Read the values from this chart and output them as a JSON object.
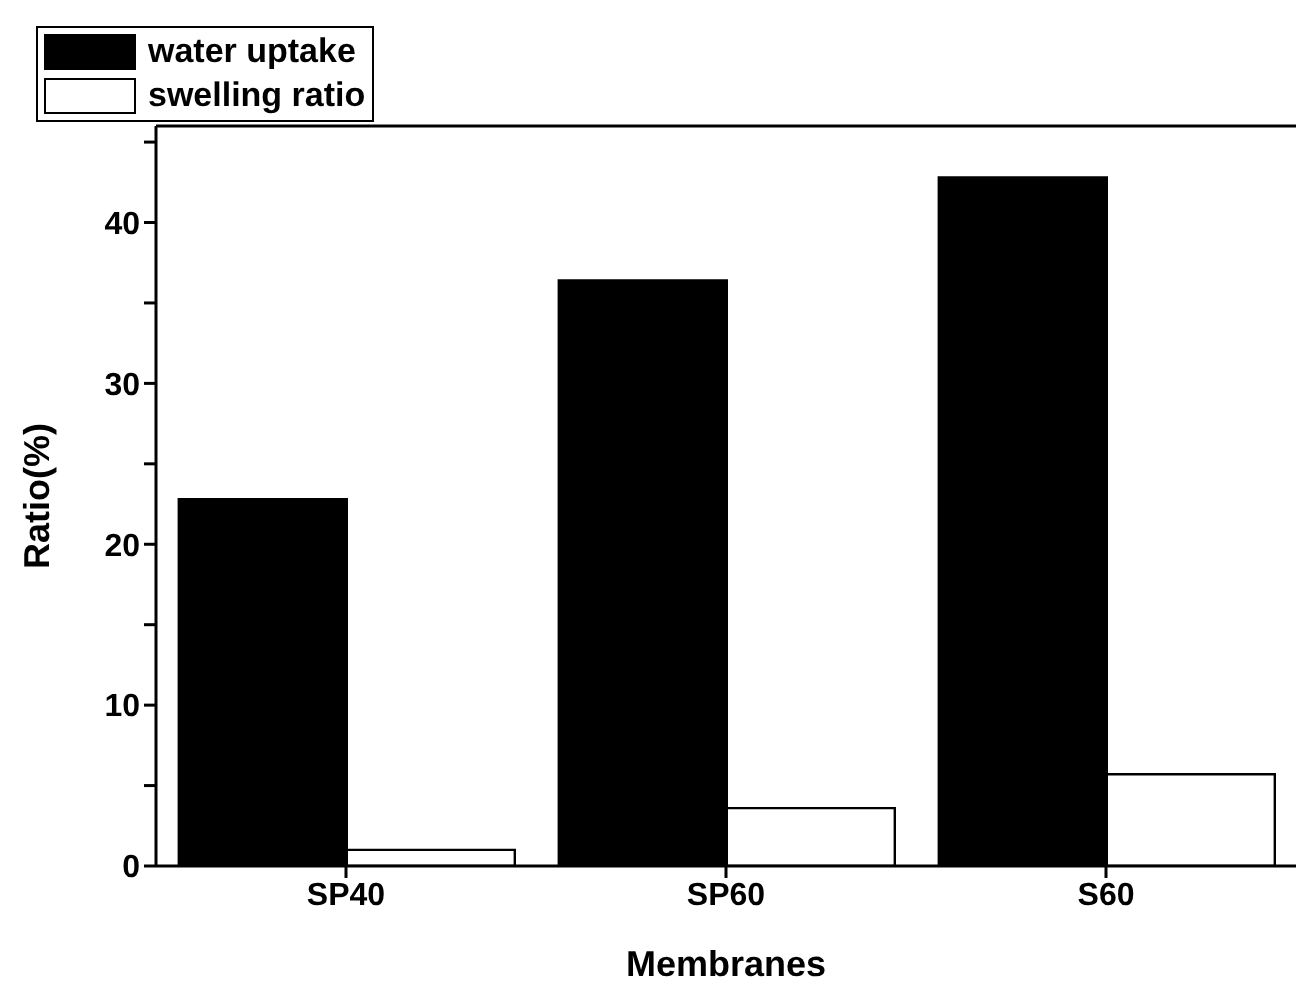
{
  "chart_data": {
    "type": "bar",
    "xlabel": "Membranes",
    "ylabel": "Ratio(%)",
    "categories": [
      "SP40",
      "SP60",
      "S60"
    ],
    "series": [
      {
        "name": "water uptake",
        "color": "#000000",
        "values": [
          22.8,
          36.4,
          42.8
        ]
      },
      {
        "name": "swelling ratio",
        "color": "#ffffff",
        "values": [
          1.0,
          3.6,
          5.7
        ]
      }
    ],
    "ylim": [
      0,
      46
    ],
    "yticks": [
      0,
      {
        "value": 5,
        "label": null
      },
      10,
      {
        "value": 15,
        "label": null
      },
      20,
      {
        "value": 25,
        "label": null
      },
      30,
      {
        "value": 35,
        "label": null
      },
      40,
      {
        "value": 45,
        "label": null
      }
    ],
    "grid": false,
    "legend": "top"
  }
}
